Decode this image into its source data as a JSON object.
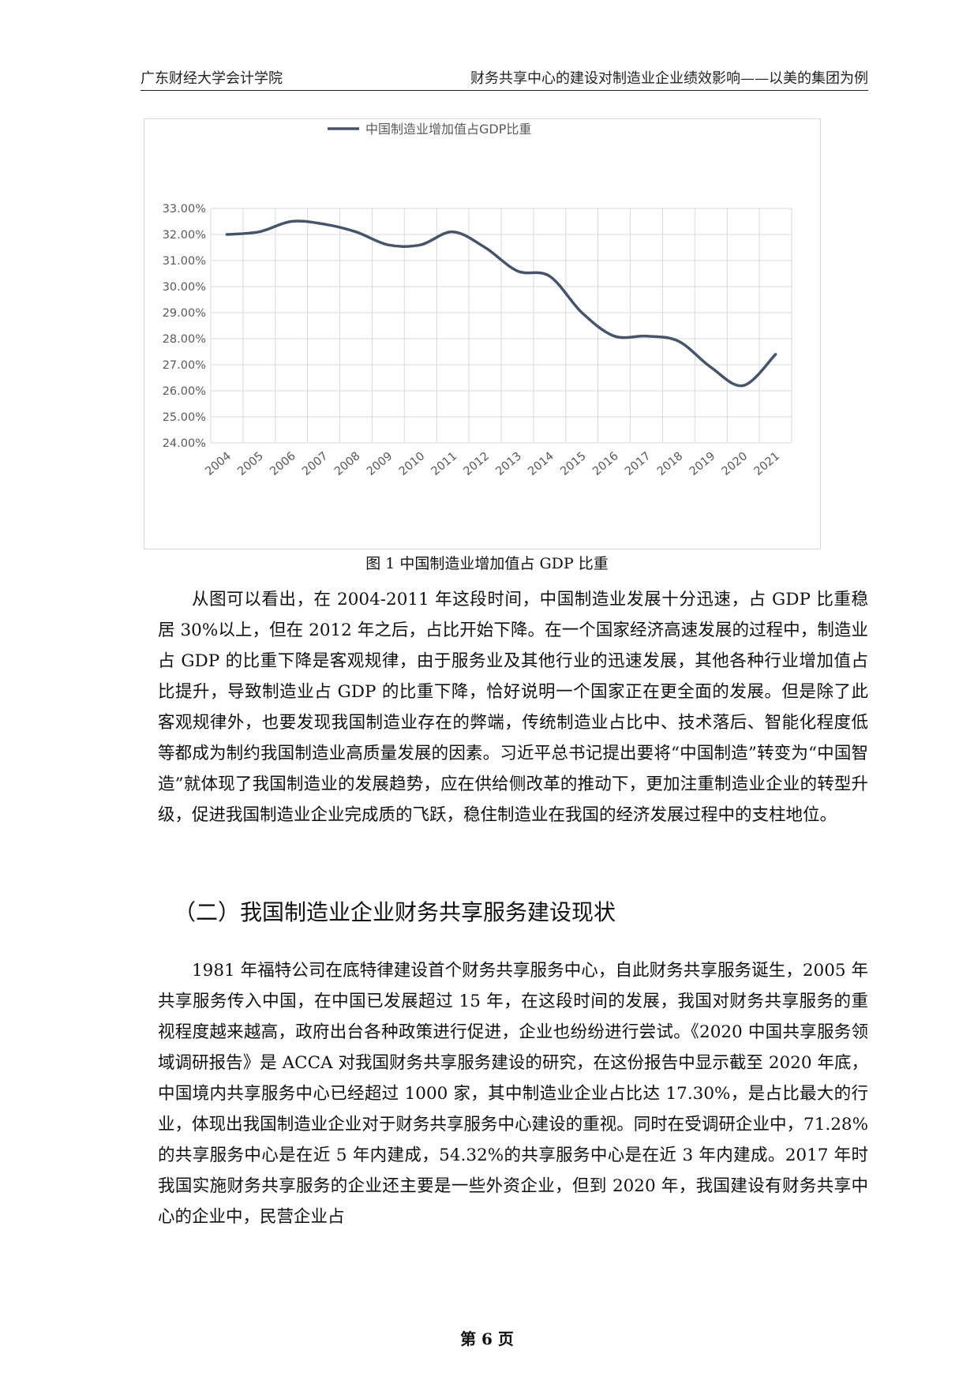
{
  "header": {
    "left": "广东财经大学会计学院",
    "right": "财务共享中心的建设对制造业企业绩效影响——以美的集团为例"
  },
  "figure": {
    "caption": "图 1 中国制造业增加值占 GDP 比重"
  },
  "chart_data": {
    "type": "line",
    "title": "",
    "xlabel": "",
    "ylabel": "",
    "legend": {
      "position": "top",
      "entries": [
        "中国制造业增加值占GDP比重"
      ]
    },
    "series_color": "#44546A",
    "grid": true,
    "ylim": [
      24,
      33
    ],
    "yticks": [
      "24.00%",
      "25.00%",
      "26.00%",
      "27.00%",
      "28.00%",
      "29.00%",
      "30.00%",
      "31.00%",
      "32.00%",
      "33.00%"
    ],
    "categories": [
      "2004",
      "2005",
      "2006",
      "2007",
      "2008",
      "2009",
      "2010",
      "2011",
      "2012",
      "2013",
      "2014",
      "2015",
      "2016",
      "2017",
      "2018",
      "2019",
      "2020",
      "2021"
    ],
    "series": [
      {
        "name": "中国制造业增加值占GDP比重",
        "values": [
          32.0,
          32.1,
          32.5,
          32.4,
          32.1,
          31.6,
          31.6,
          32.1,
          31.5,
          30.6,
          30.4,
          29.0,
          28.1,
          28.1,
          27.9,
          26.9,
          26.2,
          27.4
        ]
      }
    ]
  },
  "body": {
    "paragraph1": "从图可以看出，在 2004-2011 年这段时间，中国制造业发展十分迅速，占 GDP 比重稳居 30%以上，但在 2012 年之后，占比开始下降。在一个国家经济高速发展的过程中，制造业占 GDP 的比重下降是客观规律，由于服务业及其他行业的迅速发展，其他各种行业增加值占比提升，导致制造业占 GDP 的比重下降，恰好说明一个国家正在更全面的发展。但是除了此客观规律外，也要发现我国制造业存在的弊端，传统制造业占比中、技术落后、智能化程度低等都成为制约我国制造业高质量发展的因素。习近平总书记提出要将“中国制造”转变为“中国智造”就体现了我国制造业的发展趋势，应在供给侧改革的推动下，更加注重制造业企业的转型升级，促进我国制造业企业完成质的飞跃，稳住制造业在我国的经济发展过程中的支柱地位。",
    "section_title": "（二）我国制造业企业财务共享服务建设现状",
    "paragraph2": "1981 年福特公司在底特律建设首个财务共享服务中心，自此财务共享服务诞生，2005 年共享服务传入中国，在中国已发展超过 15 年，在这段时间的发展，我国对财务共享服务的重视程度越来越高，政府出台各种政策进行促进，企业也纷纷进行尝试。《2020 中国共享服务领域调研报告》是 ACCA 对我国财务共享服务建设的研究，在这份报告中显示截至 2020 年底，中国境内共享服务中心已经超过 1000 家，其中制造业企业占比达 17.30%，是占比最大的行业，体现出我国制造业企业对于财务共享服务中心建设的重视。同时在受调研企业中，71.28%的共享服务中心是在近 5 年内建成，54.32%的共享服务中心是在近 3 年内建成。2017 年时我国实施财务共享服务的企业还主要是一些外资企业，但到 2020 年，我国建设有财务共享中心的企业中，民营企业占"
  },
  "footer": {
    "page": "第 6 页"
  }
}
